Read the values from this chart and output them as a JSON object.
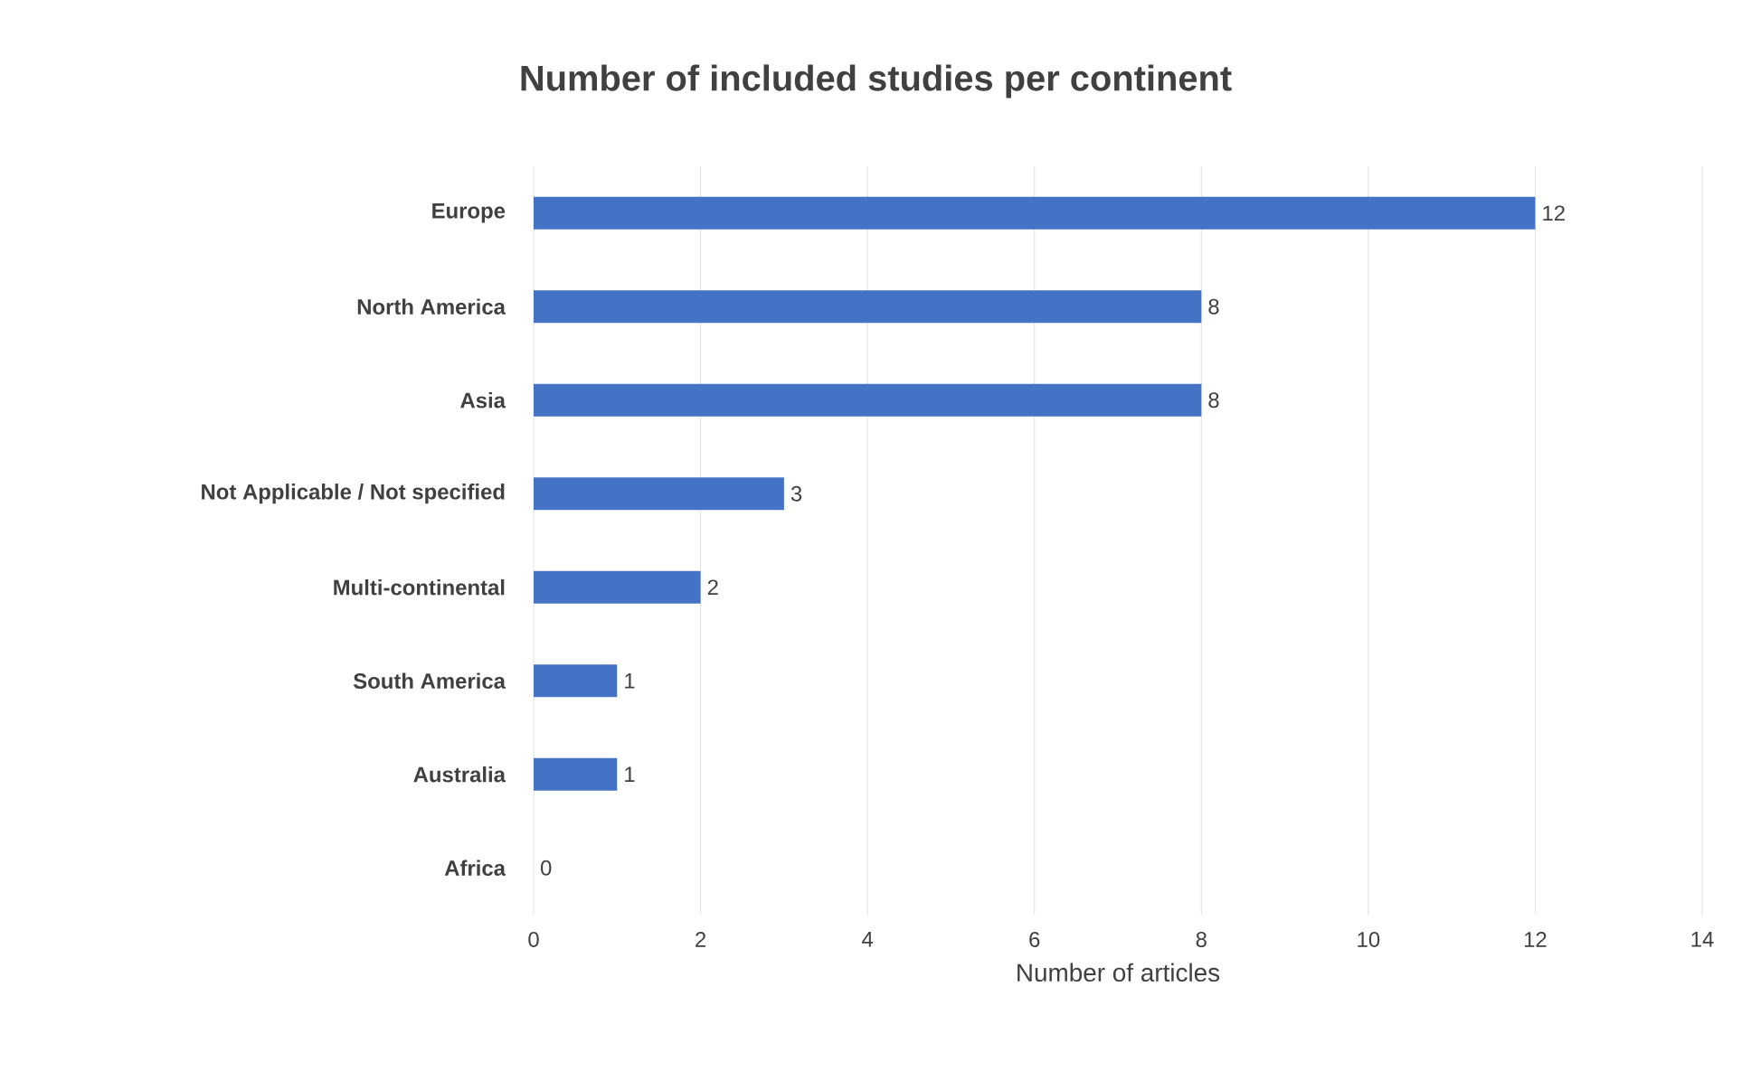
{
  "chart_data": {
    "type": "bar",
    "orientation": "horizontal",
    "title": "Number of included studies per continent",
    "xlabel": "Number of articles",
    "categories": [
      "Europe",
      "North America",
      "Asia",
      "Not Applicable / Not specified",
      "Multi-continental",
      "South America",
      "Australia",
      "Africa"
    ],
    "values": [
      12,
      8,
      8,
      3,
      2,
      1,
      1,
      0
    ],
    "color": "#4472c4",
    "xlim": [
      0,
      14
    ],
    "xticks": [
      0,
      2,
      4,
      6,
      8,
      10,
      12,
      14
    ],
    "grid": "x",
    "data_labels": true
  }
}
